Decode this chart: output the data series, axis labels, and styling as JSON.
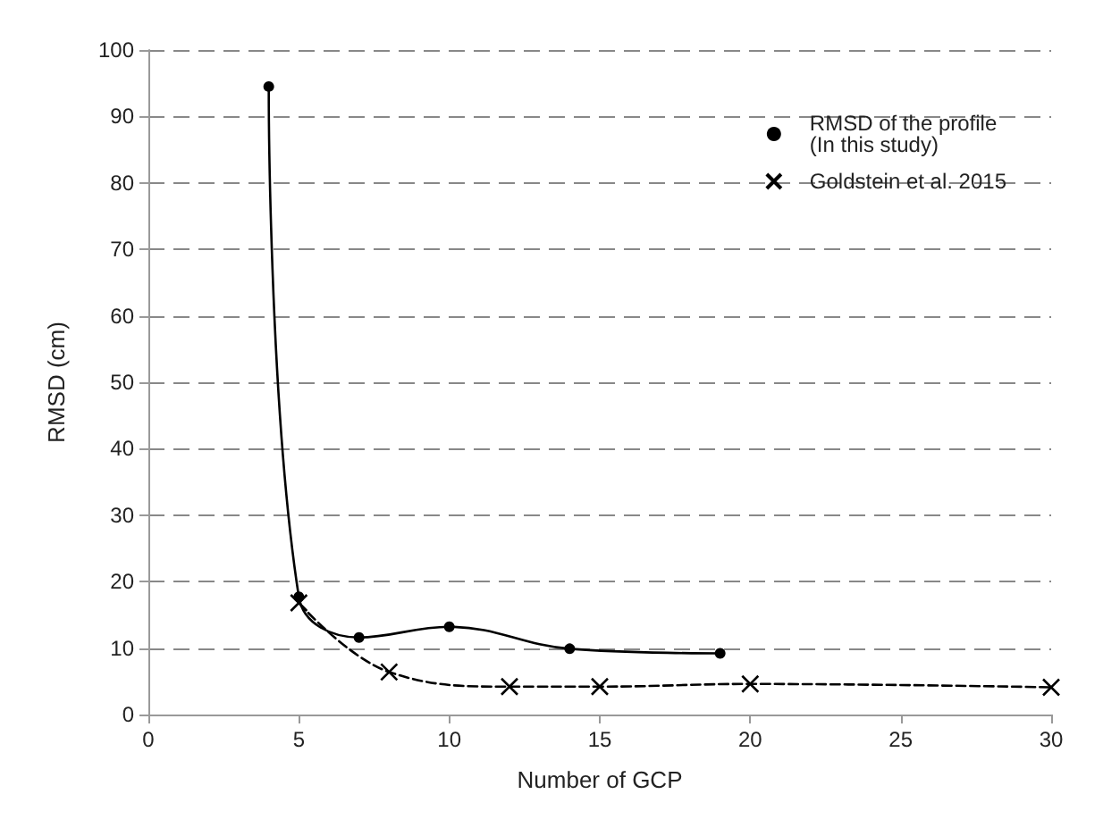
{
  "chart_data": {
    "type": "line",
    "xlabel": "Number of GCP",
    "ylabel": "RMSD (cm)",
    "xlim": [
      0,
      30
    ],
    "xticks": [
      0,
      5,
      10,
      15,
      20,
      25,
      30
    ],
    "ylim": [
      0,
      100
    ],
    "yticks": [
      0,
      10,
      20,
      30,
      40,
      50,
      60,
      70,
      80,
      90,
      100
    ],
    "grid": "y",
    "legend": "top right",
    "series": [
      {
        "name": "RMSD of the profile\n(In this study)",
        "color": "#000000",
        "marker": "circle",
        "line_style": "solid",
        "x": [
          4,
          5,
          7,
          10,
          14,
          19
        ],
        "values": [
          94.5,
          17.7,
          11.6,
          13.2,
          9.9,
          9.2
        ]
      },
      {
        "name": "Goldstein et al. 2015",
        "color": "#000000",
        "marker": "cross",
        "line_style": "dashed",
        "x": [
          5,
          8,
          12,
          15,
          20,
          30
        ],
        "values": [
          16.8,
          6.4,
          4.2,
          4.2,
          4.6,
          4.1
        ]
      }
    ]
  }
}
